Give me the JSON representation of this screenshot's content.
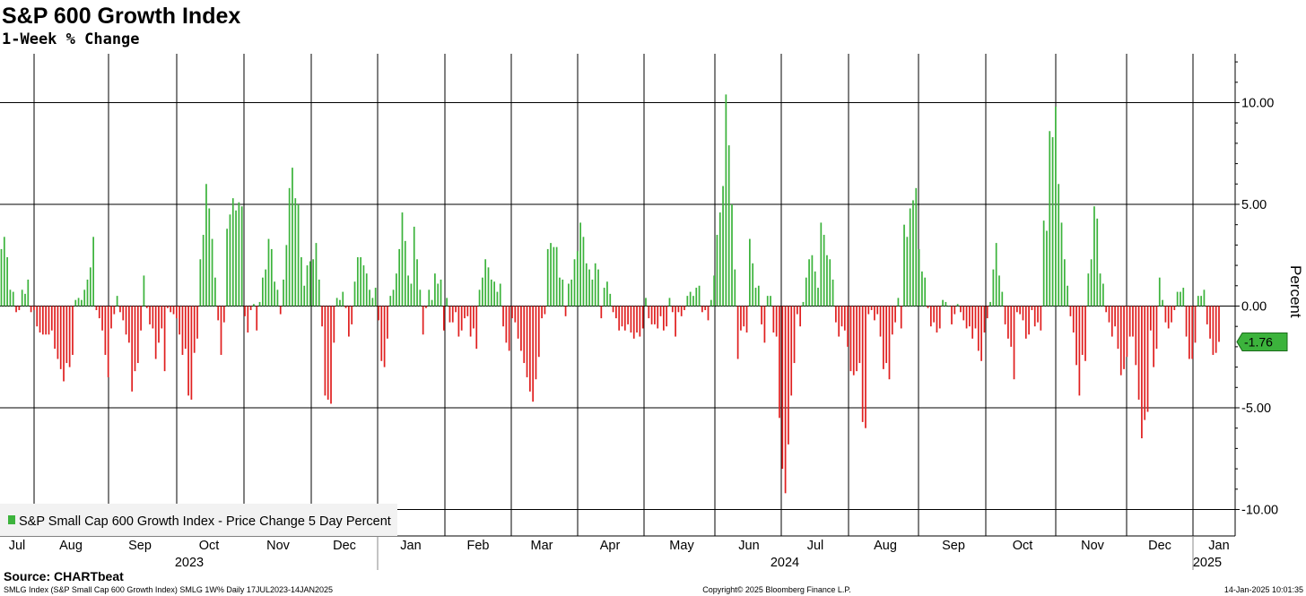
{
  "title": "S&P 600 Growth Index",
  "subtitle": "1-Week % Change",
  "legend_label": "S&P Small Cap 600 Growth Index - Price Change 5 Day Percent",
  "source_label": "Source: CHARTbeat",
  "footer": {
    "left": "SMLG Index (S&P Small Cap 600 Growth Index) SMLG 1W% Daily 17JUL2023-14JAN2025",
    "center": "Copyright© 2025 Bloomberg Finance L.P.",
    "right": "14-Jan-2025 10:01:35"
  },
  "last_value_label": "-1.76",
  "colors": {
    "positive": "#3cb33c",
    "negative": "#e02020",
    "grid": "#000000",
    "last_tag": "#3cb33c"
  },
  "chart_data": {
    "type": "bar",
    "ylabel": "Percent",
    "ylim": [
      -11.3,
      12.4
    ],
    "y_ticks": [
      -10,
      -5,
      0,
      5,
      10
    ],
    "y_tick_labels": [
      "-10.00",
      "-5.00",
      "0.00",
      "5.00",
      "10.00"
    ],
    "legend_position": "bottom-left",
    "grid": true,
    "month_labels": [
      "Jul",
      "Aug",
      "Sep",
      "Oct",
      "Nov",
      "Dec",
      "Jan",
      "Feb",
      "Mar",
      "Apr",
      "May",
      "Jun",
      "Jul",
      "Aug",
      "Sep",
      "Oct",
      "Nov",
      "Dec",
      "Jan"
    ],
    "year_labels": [
      "2023",
      "2024",
      "2025"
    ],
    "series": [
      {
        "values": [
          2.8,
          3.4,
          2.4,
          0.8,
          0.7,
          -0.3,
          -0.2,
          0.8,
          0.6,
          1.3,
          -0.3,
          -0.2,
          -1.0,
          -1.3,
          -1.4,
          -1.4,
          -1.4,
          -1.2,
          -2.1,
          -2.6,
          -3.1,
          -3.7,
          -2.8,
          -3.0,
          -2.4,
          0.3,
          0.4,
          0.3,
          0.8,
          1.3,
          1.9,
          3.4,
          -0.2,
          -0.6,
          -1.2,
          -2.4,
          -3.5,
          -1.1,
          -0.4,
          0.5,
          -0.3,
          -0.7,
          -1.4,
          -1.8,
          -4.2,
          -3.2,
          -2.8,
          -1.2,
          1.5,
          -0.1,
          -0.9,
          -1.1,
          -2.6,
          -1.8,
          -1.1,
          -3.2,
          -0.1,
          -0.3,
          -0.4,
          -0.6,
          -1.4,
          -2.4,
          -2.1,
          -4.4,
          -4.6,
          -2.3,
          -1.6,
          2.3,
          3.5,
          6.0,
          4.8,
          3.3,
          1.4,
          -0.7,
          -2.4,
          -0.8,
          3.8,
          4.5,
          5.3,
          4.7,
          5.1,
          4.9,
          -0.5,
          -1.3,
          -0.2,
          0.1,
          -1.2,
          0.2,
          1.4,
          1.8,
          3.3,
          2.8,
          1.2,
          0.8,
          -0.4,
          1.3,
          3.0,
          5.8,
          6.8,
          5.3,
          5.0,
          2.4,
          1.0,
          2.0,
          2.2,
          2.3,
          3.1,
          1.3,
          -1.0,
          -4.4,
          -4.6,
          -4.8,
          -1.8,
          0.4,
          0.3,
          0.7,
          -0.1,
          -1.5,
          -0.9,
          1.2,
          2.4,
          2.4,
          2.0,
          1.6,
          0.8,
          0.4,
          0.9,
          -0.7,
          -2.7,
          -3.0,
          -1.6,
          0.5,
          0.8,
          1.6,
          2.8,
          4.6,
          3.2,
          1.5,
          1.1,
          3.9,
          2.3,
          0.8,
          -1.4,
          -0.1,
          0.8,
          0.3,
          1.6,
          1.1,
          1.3,
          -1.2,
          0.4,
          -0.8,
          -0.8,
          -0.3,
          -1.5,
          -1.2,
          -0.6,
          -0.5,
          -1.5,
          -1.1,
          -2.1,
          0.8,
          1.4,
          2.3,
          1.9,
          1.3,
          1.2,
          0.7,
          1.1,
          -1.0,
          -1.8,
          -2.2,
          -0.6,
          -0.8,
          -1.6,
          -2.2,
          -2.8,
          -3.5,
          -4.2,
          -4.7,
          -3.6,
          -2.5,
          -0.6,
          -0.4,
          2.8,
          3.1,
          2.9,
          2.9,
          1.4,
          1.3,
          -0.5,
          1.1,
          1.3,
          2.3,
          2.7,
          4.1,
          3.4,
          2.1,
          1.8,
          1.3,
          2.1,
          1.8,
          -0.6,
          0.9,
          1.2,
          0.6,
          -0.3,
          -0.6,
          -1.2,
          -1.0,
          -1.2,
          -0.9,
          -1.3,
          -1.6,
          -1.3,
          -1.5,
          -1.1,
          0.4,
          -0.6,
          -0.9,
          -0.9,
          -1.1,
          -0.5,
          -1.2,
          -1.0,
          0.4,
          -0.3,
          -1.5,
          -0.3,
          -0.5,
          -0.2,
          0.5,
          0.7,
          0.5,
          0.9,
          1.0,
          -0.3,
          -0.2,
          -0.7,
          0.3,
          1.5,
          3.5,
          4.6,
          5.9,
          10.4,
          7.9,
          5.0,
          1.8,
          -2.6,
          -1.2,
          -1.0,
          -1.3,
          3.3,
          2.1,
          0.9,
          1.0,
          -0.9,
          -1.8,
          0.5,
          0.5,
          -1.3,
          -1.5,
          -5.5,
          -8.0,
          -9.2,
          -6.8,
          -4.4,
          -2.8,
          -0.4,
          -1.0,
          0.2,
          1.4,
          2.3,
          2.5,
          1.7,
          0.9,
          4.1,
          3.5,
          2.5,
          2.3,
          1.3,
          -0.8,
          -1.5,
          -1.0,
          -1.2,
          -2.0,
          -3.2,
          -3.4,
          -3.2,
          -2.8,
          -5.7,
          -6.0,
          -0.4,
          -0.2,
          -0.7,
          -0.4,
          -1.5,
          -3.1,
          -2.8,
          -3.6,
          -1.4,
          -0.8,
          0.4,
          -1.1,
          4.0,
          3.4,
          4.8,
          5.2,
          5.8,
          2.8,
          1.7,
          1.4,
          -0.1,
          -1.0,
          -0.8,
          -1.3,
          -1.1,
          0.3,
          0.2,
          0.0,
          -0.9,
          -0.4,
          0.1,
          -0.3,
          -0.7,
          -1.1,
          -1.0,
          -1.6,
          -1.1,
          -2.2,
          -2.7,
          -1.3,
          -0.6,
          0.2,
          1.8,
          3.1,
          1.5,
          0.7,
          -0.9,
          -1.6,
          -2.0,
          -3.6,
          -0.3,
          -0.4,
          -0.7,
          -1.6,
          -1.4,
          -0.2,
          -1.0,
          -0.8,
          -1.2,
          4.2,
          3.7,
          8.6,
          8.3,
          9.8,
          6.0,
          4.1,
          2.3,
          1.0,
          -0.5,
          -1.3,
          -2.9,
          -4.4,
          -2.4,
          -2.7,
          1.6,
          2.3,
          4.9,
          4.3,
          1.6,
          1.1,
          -0.3,
          -0.8,
          -1.5,
          -1.0,
          -2.1,
          -3.4,
          -3.1,
          -2.5,
          -1.5,
          -1.5,
          -2.9,
          -4.6,
          -6.5,
          -5.6,
          -5.2,
          -1.2,
          -3.0,
          -2.1,
          1.4,
          0.3,
          -0.8,
          -1.1,
          -0.8,
          -0.2,
          0.7,
          0.7,
          0.9,
          -1.5,
          -2.6,
          -2.6,
          -1.8,
          0.5,
          0.5,
          0.8,
          -0.9,
          -1.6,
          -2.4,
          -2.3,
          -1.76
        ]
      }
    ]
  }
}
